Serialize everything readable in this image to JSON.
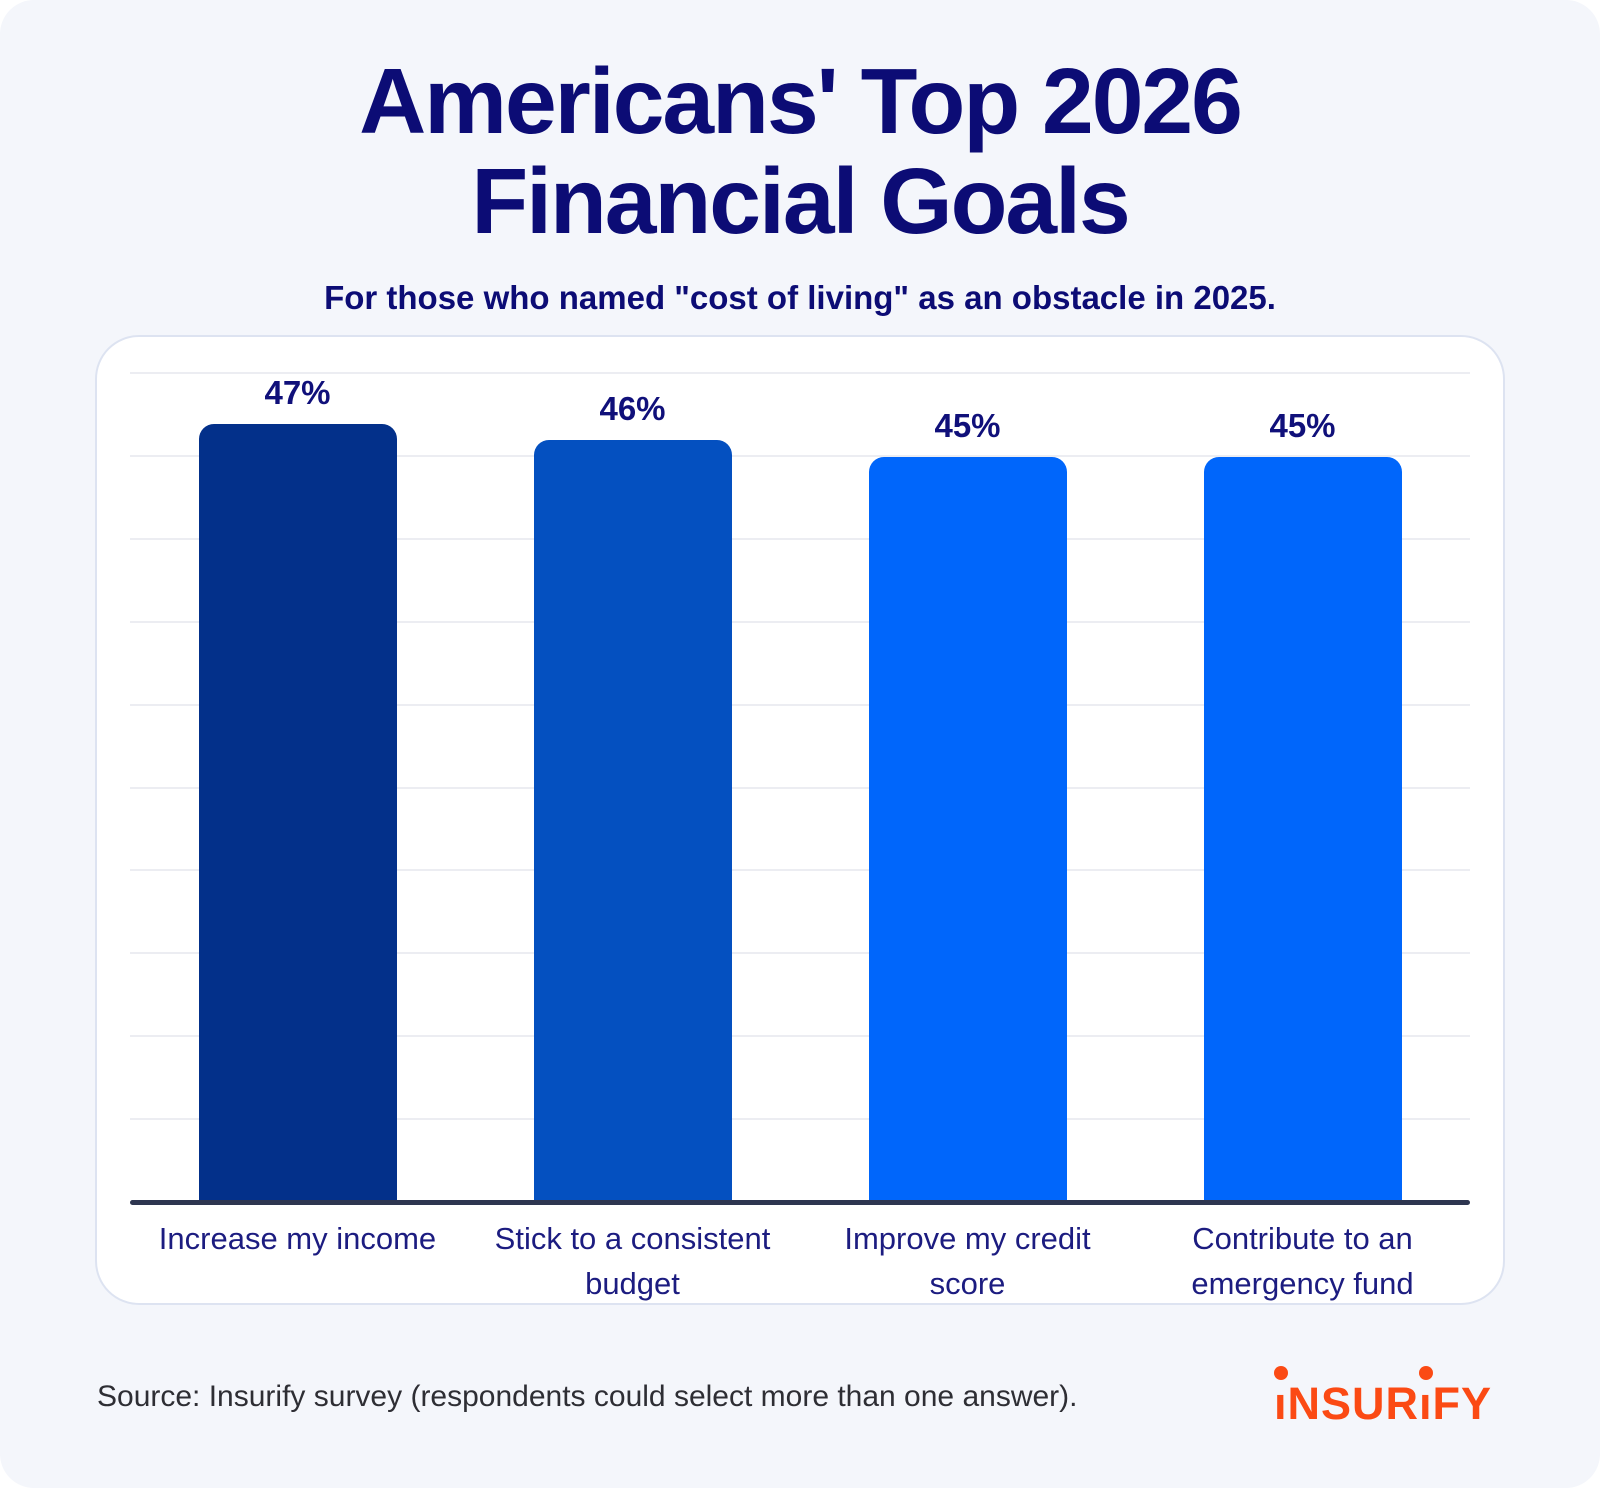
{
  "page": {
    "title": "Americans' Top 2026\nFinancial Goals",
    "subtitle": "For those who named \"cost of living\" as an obstacle in 2025."
  },
  "chart_data": {
    "type": "bar",
    "title": "Americans' Top 2026 Financial Goals",
    "subtitle": "For those who named \"cost of living\" as an obstacle in 2025.",
    "categories": [
      "Increase my income",
      "Stick to a consistent budget",
      "Improve my credit score",
      "Contribute to an emergency fund"
    ],
    "values": [
      47,
      46,
      45,
      45
    ],
    "value_labels": [
      "47%",
      "46%",
      "45%",
      "45%"
    ],
    "bar_colors": [
      "#03308a",
      "#0450c0",
      "#0066fb",
      "#0066fb"
    ],
    "xlabel": "",
    "ylabel": "",
    "ylim": [
      0,
      50
    ],
    "grid_step": 5,
    "grid": true,
    "legend": false
  },
  "footer": {
    "source": "Source: Insurify survey (respondents could select more than one answer).",
    "logo_text": "insurify",
    "logo_color": "#fb4a14"
  },
  "colors": {
    "background": "#f4f6fb",
    "card_background": "#ffffff",
    "card_border": "#dde3f1",
    "title_navy": "#0c0c75",
    "value_label_navy": "#10107a",
    "axis_line": "#2e3650",
    "gridline": "#ecedf2",
    "logo_orange": "#fb4a14"
  }
}
